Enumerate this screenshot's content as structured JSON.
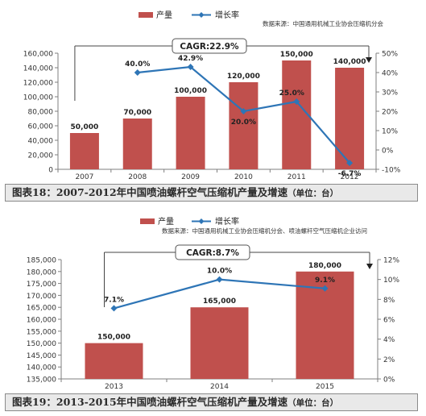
{
  "charts": [
    {
      "caption": "图表18：2007-2012年中国喷油螺杆空气压缩机产量及增速",
      "unit": "（单位：台）",
      "source": "数据来源：中国通用机械工业协会压缩机分会",
      "cagr": "CAGR:22.9%"
    },
    {
      "caption": "图表19：2013-2015年中国喷油螺杆空气压缩机产量及增速",
      "unit": "（单位：台）",
      "source": "数据来源：中国通用机械工业协会压缩机分会、喷油螺杆空气压缩机企业访问",
      "cagr": "CAGR:8.7%"
    }
  ],
  "colors": {
    "bar": "#c0504d",
    "line": "#2e75b6",
    "axis": "#7f7f7f"
  },
  "chart_data": [
    {
      "type": "bar",
      "categories": [
        "2007",
        "2008",
        "2009",
        "2010",
        "2011",
        "2012"
      ],
      "series": [
        {
          "name": "产量",
          "type": "bar",
          "axis": "left",
          "values": [
            50000,
            70000,
            100000,
            120000,
            150000,
            140000
          ],
          "labels": [
            "50,000",
            "70,000",
            "100,000",
            "120,000",
            "150,000",
            "140,000"
          ]
        },
        {
          "name": "增长率",
          "type": "line",
          "axis": "right",
          "values": [
            null,
            40.0,
            42.9,
            20.0,
            25.0,
            -6.7
          ],
          "labels": [
            "",
            "40.0%",
            "42.9%",
            "20.0%",
            "25.0%",
            "-6.7%"
          ]
        }
      ],
      "ylim": [
        0,
        160000
      ],
      "y2lim": [
        -10,
        50
      ],
      "yticks": [
        "0",
        "20,000",
        "40,000",
        "60,000",
        "80,000",
        "100,000",
        "120,000",
        "140,000",
        "160,000"
      ],
      "y2ticks": [
        "-10%",
        "0%",
        "10%",
        "20%",
        "30%",
        "40%",
        "50%"
      ],
      "legend": "top-center",
      "grid": false
    },
    {
      "type": "bar",
      "categories": [
        "2013",
        "2014",
        "2015"
      ],
      "series": [
        {
          "name": "产量",
          "type": "bar",
          "axis": "left",
          "values": [
            150000,
            165000,
            180000
          ],
          "labels": [
            "150,000",
            "165,000",
            "180,000"
          ]
        },
        {
          "name": "增长率",
          "type": "line",
          "axis": "right",
          "values": [
            7.1,
            10.0,
            9.1
          ],
          "labels": [
            "7.1%",
            "10.0%",
            "9.1%"
          ]
        }
      ],
      "ylim": [
        135000,
        185000
      ],
      "y2lim": [
        0,
        12
      ],
      "yticks": [
        "135,000",
        "140,000",
        "145,000",
        "150,000",
        "155,000",
        "160,000",
        "165,000",
        "170,000",
        "175,000",
        "180,000",
        "185,000"
      ],
      "y2ticks": [
        "0%",
        "2%",
        "4%",
        "6%",
        "8%",
        "10%",
        "12%"
      ],
      "legend": "top-center",
      "grid": false
    }
  ]
}
